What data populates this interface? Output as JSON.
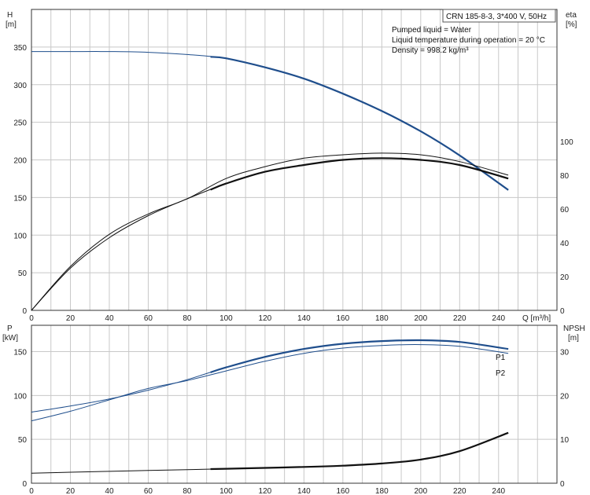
{
  "info": {
    "model": "CRN 185-8-3, 3*400 V, 50Hz",
    "lines": [
      "Pumped liquid = Water",
      "Liquid temperature during operation = 20 °C",
      "Density = 998.2 kg/m³"
    ]
  },
  "colors": {
    "blue": "#1f4e8c",
    "black": "#111111",
    "grid": "#c8c8c8"
  },
  "chart_data": [
    {
      "type": "line",
      "panel": "top",
      "xlabel": "Q [m³/h]",
      "ylabel_left": [
        "H",
        "[m]"
      ],
      "ylabel_right": [
        "eta",
        "[%]"
      ],
      "xlim": [
        0,
        270
      ],
      "ylim": [
        0,
        400
      ],
      "ylim_right": [
        0,
        178
      ],
      "x_ticks": [
        0,
        20,
        40,
        60,
        80,
        100,
        120,
        140,
        160,
        180,
        200,
        220,
        240
      ],
      "y_ticks": [
        0,
        50,
        100,
        150,
        200,
        250,
        300,
        350
      ],
      "y_ticks_right": [
        0,
        20,
        40,
        60,
        80,
        100
      ],
      "grid": true,
      "series": [
        {
          "axis": "left",
          "color": "blue",
          "x": [
            0,
            20,
            40,
            60,
            80,
            100,
            120,
            140,
            160,
            180,
            200,
            220,
            245
          ],
          "y": [
            344,
            344,
            344,
            343,
            340,
            335,
            323,
            308,
            288,
            265,
            238,
            206,
            160
          ],
          "bold_from": 92
        },
        {
          "axis": "right",
          "color": "black",
          "x": [
            0,
            20,
            40,
            60,
            80,
            100,
            120,
            140,
            160,
            180,
            200,
            220,
            245
          ],
          "y": [
            0,
            26,
            45,
            57,
            66,
            78,
            85,
            90,
            92,
            93,
            92,
            88,
            80
          ],
          "bold_from": 999
        },
        {
          "axis": "right",
          "color": "black",
          "x": [
            0,
            20,
            40,
            60,
            80,
            100,
            120,
            140,
            160,
            180,
            200,
            220,
            245
          ],
          "y": [
            0,
            25,
            43,
            56,
            66,
            75,
            82,
            86,
            89,
            90,
            89,
            86,
            78
          ],
          "bold_from": 92
        }
      ]
    },
    {
      "type": "line",
      "panel": "bottom",
      "xlabel": "",
      "ylabel_left": [
        "P",
        "[kW]"
      ],
      "ylabel_right": [
        "NPSH",
        "[m]"
      ],
      "xlim": [
        0,
        270
      ],
      "ylim": [
        0,
        180
      ],
      "ylim_right": [
        0,
        36
      ],
      "x_ticks": [
        0,
        20,
        40,
        60,
        80,
        100,
        120,
        140,
        160,
        180,
        200,
        220,
        240
      ],
      "y_ticks": [
        0,
        50,
        100,
        150
      ],
      "y_ticks_right": [
        0,
        10,
        20,
        30
      ],
      "grid": true,
      "series": [
        {
          "name": "P1",
          "axis": "left",
          "color": "blue",
          "x": [
            0,
            20,
            40,
            60,
            80,
            100,
            120,
            140,
            160,
            180,
            200,
            220,
            245
          ],
          "y": [
            81,
            88,
            96,
            106,
            118,
            132,
            144,
            153,
            159,
            162,
            163,
            161,
            153
          ],
          "bold_from": 92
        },
        {
          "name": "P2",
          "axis": "left",
          "color": "blue",
          "x": [
            0,
            20,
            40,
            60,
            80,
            100,
            120,
            140,
            160,
            180,
            200,
            220,
            245
          ],
          "y": [
            71,
            82,
            95,
            108,
            117,
            128,
            139,
            148,
            154,
            157,
            158,
            156,
            148
          ],
          "bold_from": 999
        },
        {
          "axis": "right",
          "color": "black",
          "x": [
            0,
            20,
            40,
            60,
            80,
            100,
            120,
            140,
            160,
            180,
            200,
            220,
            245
          ],
          "y": [
            2.3,
            2.5,
            2.7,
            2.9,
            3.1,
            3.3,
            3.5,
            3.7,
            4.0,
            4.5,
            5.4,
            7.3,
            11.5
          ],
          "bold_from": 92
        }
      ]
    }
  ]
}
